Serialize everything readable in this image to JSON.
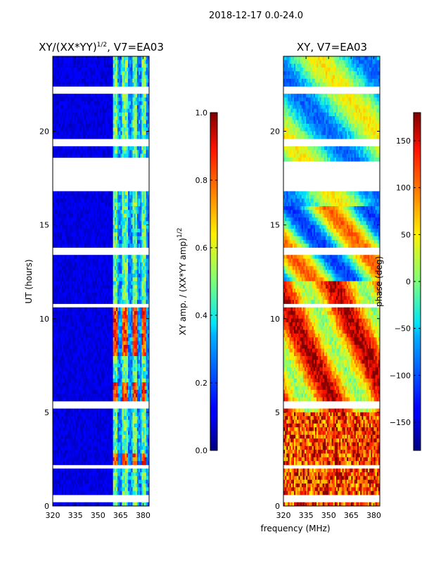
{
  "suptitle": "2018-12-17 0.0-24.0",
  "chart_data": [
    {
      "id": "amplitude",
      "type": "heatmap",
      "title_main": "XY/(XX*YY)",
      "title_exp": "1/2",
      "title_rest": ", V7=EA03",
      "xlabel": "",
      "ylabel": "UT (hours)",
      "xlim": [
        320,
        384
      ],
      "ylim": [
        0,
        24
      ],
      "xticks": [
        320,
        335,
        350,
        365,
        380
      ],
      "yticks": [
        0,
        5,
        10,
        15,
        20
      ],
      "colorbar": {
        "label_main": "XY amp. / (XX*YY amp)",
        "label_exp": "1/2",
        "range": [
          0.0,
          1.0
        ],
        "ticks": [
          "0.0",
          "0.2",
          "0.4",
          "0.6",
          "0.8",
          "1.0"
        ],
        "tick_values": [
          0.0,
          0.2,
          0.4,
          0.6,
          0.8,
          1.0
        ],
        "colormap": "jet"
      },
      "flagged_hours": [
        [
          16.8,
          18.6
        ],
        [
          19.3,
          19.5
        ],
        [
          22.1,
          22.3
        ],
        [
          13.5,
          13.7
        ],
        [
          10.6,
          10.8
        ],
        [
          5.3,
          5.5
        ],
        [
          2.1,
          2.3
        ],
        [
          0.3,
          0.5
        ]
      ],
      "bright_band_mhz": [
        360,
        384
      ],
      "peak_hours": [
        [
          8,
          10.5
        ],
        [
          5.5,
          6.5
        ],
        [
          2.3,
          2.8
        ]
      ]
    },
    {
      "id": "phase",
      "type": "heatmap",
      "title_main": "XY, V7=EA03",
      "xlabel": "frequency (MHz)",
      "ylabel": "",
      "xlim": [
        320,
        384
      ],
      "ylim": [
        0,
        24
      ],
      "xticks": [
        320,
        335,
        350,
        365,
        380
      ],
      "yticks": [
        0,
        5,
        10,
        15,
        20
      ],
      "colorbar": {
        "label_main": "phase (deg)",
        "range": [
          -180,
          180
        ],
        "ticks": [
          "150",
          "100",
          "50",
          "0",
          "−50",
          "−100",
          "−150"
        ],
        "tick_values": [
          150,
          100,
          50,
          0,
          -50,
          -100,
          -150
        ],
        "colormap": "jet"
      },
      "flagged_hours": [
        [
          16.9,
          18.4
        ],
        [
          19.3,
          19.5
        ],
        [
          22.1,
          22.3
        ],
        [
          13.5,
          13.7
        ],
        [
          10.6,
          10.8
        ],
        [
          5.3,
          5.5
        ],
        [
          2.1,
          2.3
        ],
        [
          0.3,
          0.5
        ]
      ]
    }
  ]
}
